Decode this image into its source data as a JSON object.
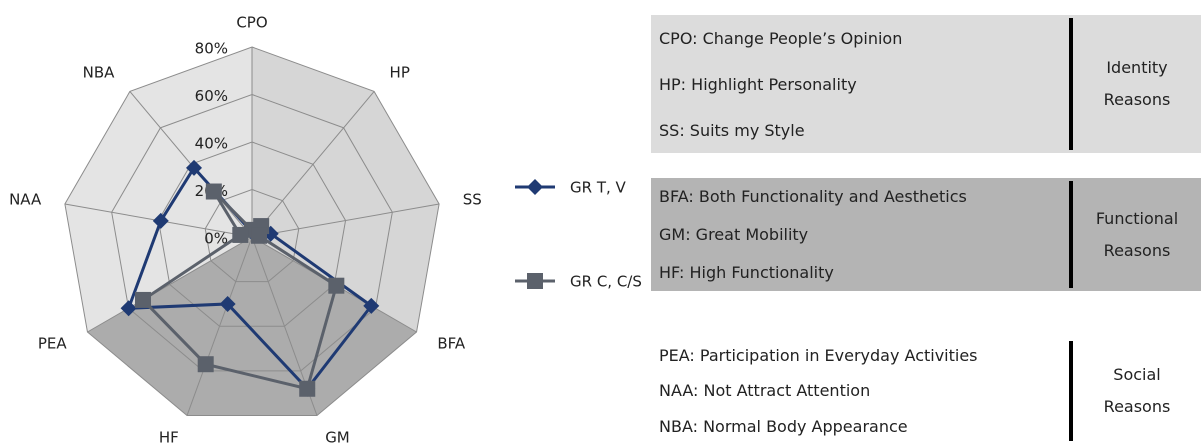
{
  "chart_data": {
    "type": "radar",
    "categories": [
      "CPO",
      "HP",
      "SS",
      "BFA",
      "GM",
      "HF",
      "PEA",
      "NAA",
      "NBA"
    ],
    "series": [
      {
        "name": "GR T, V",
        "color": "#1f3a73",
        "values": [
          2,
          5,
          8,
          58,
          68,
          30,
          60,
          39,
          38
        ]
      },
      {
        "name": "GR C, C/S",
        "color": "#5b616b",
        "values": [
          3,
          6,
          3,
          41,
          68,
          57,
          53,
          5,
          25
        ]
      }
    ],
    "ylim": [
      0,
      80
    ],
    "yticks": [
      {
        "value": 0,
        "label": "0%"
      },
      {
        "value": 20,
        "label": "20%"
      },
      {
        "value": 40,
        "label": "40%"
      },
      {
        "value": 60,
        "label": "60%"
      },
      {
        "value": 80,
        "label": "80%"
      }
    ],
    "grid": true
  },
  "legend_table": [
    {
      "items": [
        "CPO: Change People’s Opinion",
        "HP: Highlight Personality",
        "SS: Suits my Style"
      ],
      "label": "Identity Reasons",
      "color": "#dcdcdc"
    },
    {
      "items": [
        "BFA: Both Functionality and Aesthetics",
        "GM: Great Mobility",
        "HF: High Functionality"
      ],
      "label": "Functional Reasons",
      "color": "#b4b4b4"
    },
    {
      "items": [
        "PEA: Participation in Everyday Activities",
        "NAA: Not Attract Attention",
        "NBA: Normal Body Appearance"
      ],
      "label": "Social Reasons",
      "color": "#ffffff"
    }
  ]
}
